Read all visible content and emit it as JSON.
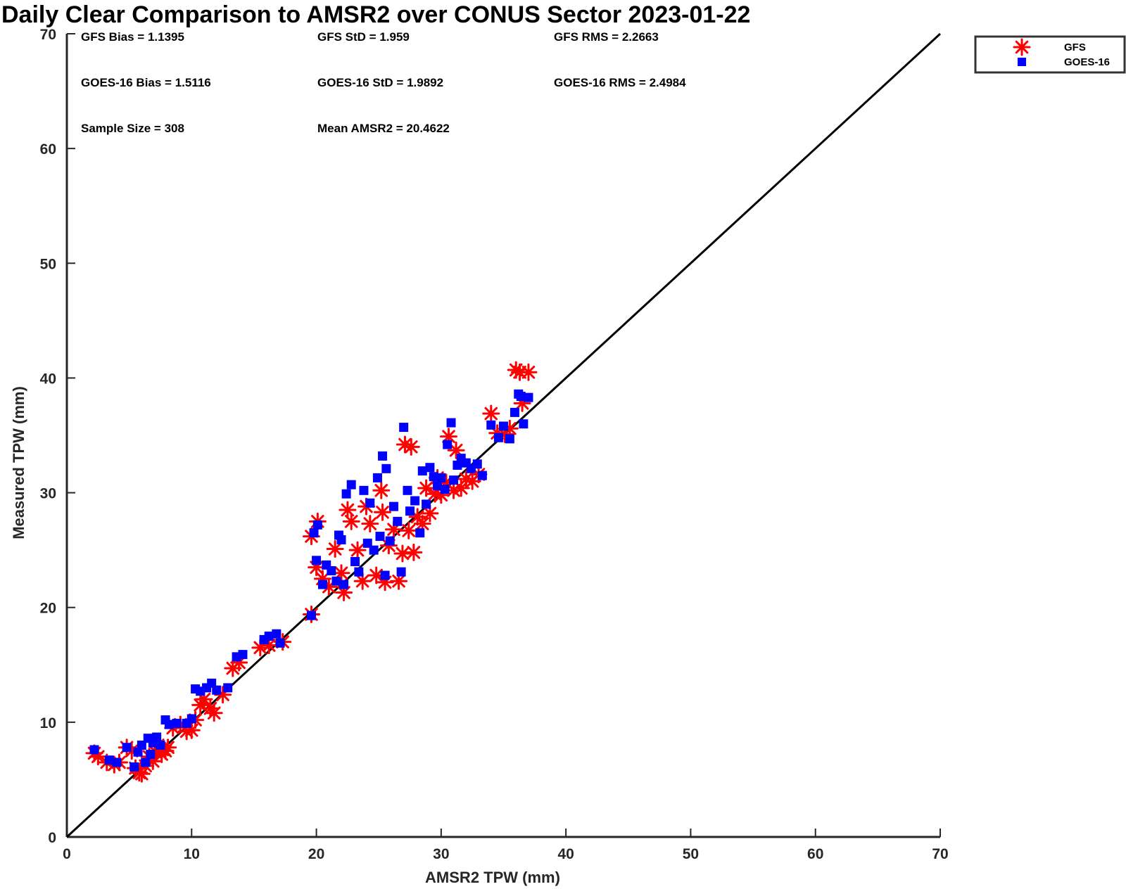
{
  "chart_data": {
    "type": "scatter",
    "title": "Daily Clear Comparison to AMSR2 over CONUS Sector 2023-01-22",
    "xlabel": "AMSR2 TPW (mm)",
    "ylabel": "Measured TPW (mm)",
    "xlim": [
      0,
      70
    ],
    "ylim": [
      0,
      70
    ],
    "xticks": [
      "0",
      "10",
      "20",
      "30",
      "40",
      "50",
      "60",
      "70"
    ],
    "yticks": [
      "0",
      "10",
      "20",
      "30",
      "40",
      "50",
      "60",
      "70"
    ],
    "reference_line": {
      "name": "1:1",
      "x": [
        0,
        70
      ],
      "y": [
        0,
        70
      ],
      "color": "#000000"
    },
    "stats": [
      [
        "GFS Bias = 1.1395",
        "GFS StD = 1.959",
        "GFS RMS = 2.2663"
      ],
      [
        "GOES-16 Bias = 1.5116",
        "GOES-16 StD = 1.9892",
        "GOES-16 RMS = 2.4984"
      ],
      [
        "Sample Size = 308",
        "Mean AMSR2 = 20.4622",
        ""
      ]
    ],
    "legend": {
      "position": "top-right",
      "entries": [
        "GFS",
        "GOES-16"
      ]
    },
    "series": [
      {
        "name": "GFS",
        "marker": "asterisk",
        "color": "#ff0000",
        "points": [
          [
            2.2,
            7.3
          ],
          [
            2.5,
            7.0
          ],
          [
            3.2,
            6.5
          ],
          [
            3.8,
            6.3
          ],
          [
            4.2,
            6.5
          ],
          [
            4.8,
            7.8
          ],
          [
            5.2,
            7.5
          ],
          [
            5.5,
            6.0
          ],
          [
            5.8,
            5.6
          ],
          [
            6.0,
            5.5
          ],
          [
            6.3,
            6.2
          ],
          [
            6.6,
            7.0
          ],
          [
            6.9,
            6.6
          ],
          [
            7.1,
            7.4
          ],
          [
            7.3,
            8.0
          ],
          [
            7.6,
            7.2
          ],
          [
            7.9,
            7.5
          ],
          [
            8.1,
            7.8
          ],
          [
            8.5,
            9.5
          ],
          [
            9.1,
            9.8
          ],
          [
            9.6,
            9.2
          ],
          [
            10.0,
            9.3
          ],
          [
            10.3,
            10.2
          ],
          [
            10.7,
            11.5
          ],
          [
            11.0,
            12.0
          ],
          [
            11.5,
            11.2
          ],
          [
            11.8,
            10.8
          ],
          [
            12.5,
            12.4
          ],
          [
            13.3,
            14.7
          ],
          [
            13.8,
            15.2
          ],
          [
            15.5,
            16.5
          ],
          [
            16.2,
            16.7
          ],
          [
            17.3,
            17.0
          ],
          [
            19.6,
            19.4
          ],
          [
            19.6,
            26.2
          ],
          [
            20.1,
            27.5
          ],
          [
            20.0,
            23.5
          ],
          [
            20.5,
            22.5
          ],
          [
            21.0,
            21.8
          ],
          [
            21.5,
            25.1
          ],
          [
            22.0,
            23.0
          ],
          [
            22.2,
            21.3
          ],
          [
            22.5,
            28.5
          ],
          [
            22.8,
            27.5
          ],
          [
            23.3,
            25.0
          ],
          [
            23.7,
            22.3
          ],
          [
            24.0,
            28.8
          ],
          [
            24.3,
            27.3
          ],
          [
            24.8,
            22.8
          ],
          [
            25.2,
            30.2
          ],
          [
            25.3,
            28.3
          ],
          [
            25.5,
            22.2
          ],
          [
            25.8,
            25.4
          ],
          [
            26.2,
            26.8
          ],
          [
            26.6,
            22.3
          ],
          [
            26.9,
            24.7
          ],
          [
            27.1,
            34.2
          ],
          [
            27.4,
            26.7
          ],
          [
            27.6,
            34.0
          ],
          [
            27.8,
            24.8
          ],
          [
            28.1,
            27.9
          ],
          [
            28.5,
            27.3
          ],
          [
            28.8,
            30.4
          ],
          [
            29.1,
            28.2
          ],
          [
            29.5,
            29.9
          ],
          [
            29.7,
            31.3
          ],
          [
            30.0,
            29.8
          ],
          [
            30.4,
            30.9
          ],
          [
            30.6,
            34.9
          ],
          [
            31.0,
            30.2
          ],
          [
            31.2,
            33.7
          ],
          [
            31.6,
            30.4
          ],
          [
            32.0,
            31.2
          ],
          [
            32.5,
            31.0
          ],
          [
            33.0,
            31.6
          ],
          [
            34.0,
            36.9
          ],
          [
            34.5,
            35.2
          ],
          [
            35.1,
            35.1
          ],
          [
            35.5,
            35.6
          ],
          [
            36.0,
            40.7
          ],
          [
            36.3,
            40.5
          ],
          [
            36.5,
            37.8
          ],
          [
            37.0,
            40.5
          ]
        ]
      },
      {
        "name": "GOES-16",
        "marker": "square",
        "color": "#0000ff",
        "points": [
          [
            2.2,
            7.6
          ],
          [
            3.4,
            6.7
          ],
          [
            4.0,
            6.5
          ],
          [
            4.8,
            7.8
          ],
          [
            5.4,
            6.1
          ],
          [
            5.7,
            7.4
          ],
          [
            6.0,
            8.0
          ],
          [
            6.3,
            6.5
          ],
          [
            6.5,
            8.6
          ],
          [
            6.7,
            7.2
          ],
          [
            6.9,
            8.2
          ],
          [
            7.2,
            8.7
          ],
          [
            7.5,
            8.0
          ],
          [
            7.9,
            10.2
          ],
          [
            8.2,
            9.8
          ],
          [
            8.8,
            9.9
          ],
          [
            9.6,
            9.9
          ],
          [
            10.0,
            10.3
          ],
          [
            10.3,
            12.9
          ],
          [
            10.7,
            12.7
          ],
          [
            11.2,
            13.0
          ],
          [
            11.6,
            13.4
          ],
          [
            12.0,
            12.8
          ],
          [
            12.9,
            13.0
          ],
          [
            13.6,
            15.7
          ],
          [
            14.1,
            15.9
          ],
          [
            15.8,
            17.2
          ],
          [
            16.2,
            17.5
          ],
          [
            16.8,
            17.7
          ],
          [
            17.1,
            16.9
          ],
          [
            19.6,
            19.3
          ],
          [
            19.8,
            26.5
          ],
          [
            20.1,
            27.2
          ],
          [
            20.0,
            24.1
          ],
          [
            20.5,
            22.0
          ],
          [
            20.8,
            23.7
          ],
          [
            21.2,
            23.2
          ],
          [
            21.6,
            22.3
          ],
          [
            21.8,
            26.3
          ],
          [
            22.0,
            25.9
          ],
          [
            22.2,
            22.0
          ],
          [
            22.4,
            29.9
          ],
          [
            22.8,
            30.7
          ],
          [
            23.1,
            24.0
          ],
          [
            23.4,
            23.1
          ],
          [
            23.8,
            30.2
          ],
          [
            24.1,
            25.6
          ],
          [
            24.3,
            29.1
          ],
          [
            24.6,
            25.0
          ],
          [
            24.9,
            31.3
          ],
          [
            25.1,
            26.2
          ],
          [
            25.3,
            33.2
          ],
          [
            25.5,
            22.8
          ],
          [
            25.6,
            32.1
          ],
          [
            25.9,
            25.8
          ],
          [
            26.2,
            28.8
          ],
          [
            26.5,
            27.5
          ],
          [
            26.8,
            23.1
          ],
          [
            27.0,
            35.7
          ],
          [
            27.3,
            30.2
          ],
          [
            27.5,
            28.4
          ],
          [
            27.9,
            29.3
          ],
          [
            28.3,
            26.5
          ],
          [
            28.5,
            31.9
          ],
          [
            28.8,
            29.0
          ],
          [
            29.1,
            32.2
          ],
          [
            29.4,
            31.4
          ],
          [
            29.7,
            30.6
          ],
          [
            30.0,
            31.3
          ],
          [
            30.3,
            30.3
          ],
          [
            30.5,
            34.2
          ],
          [
            30.8,
            36.1
          ],
          [
            31.0,
            31.1
          ],
          [
            31.3,
            32.4
          ],
          [
            31.6,
            33.0
          ],
          [
            32.0,
            32.6
          ],
          [
            32.4,
            32.1
          ],
          [
            32.9,
            32.5
          ],
          [
            33.3,
            31.5
          ],
          [
            34.0,
            35.9
          ],
          [
            34.6,
            34.8
          ],
          [
            35.0,
            35.8
          ],
          [
            35.5,
            34.7
          ],
          [
            35.9,
            37.0
          ],
          [
            36.2,
            38.6
          ],
          [
            36.4,
            38.4
          ],
          [
            36.6,
            36.0
          ],
          [
            37.0,
            38.3
          ]
        ]
      }
    ]
  }
}
